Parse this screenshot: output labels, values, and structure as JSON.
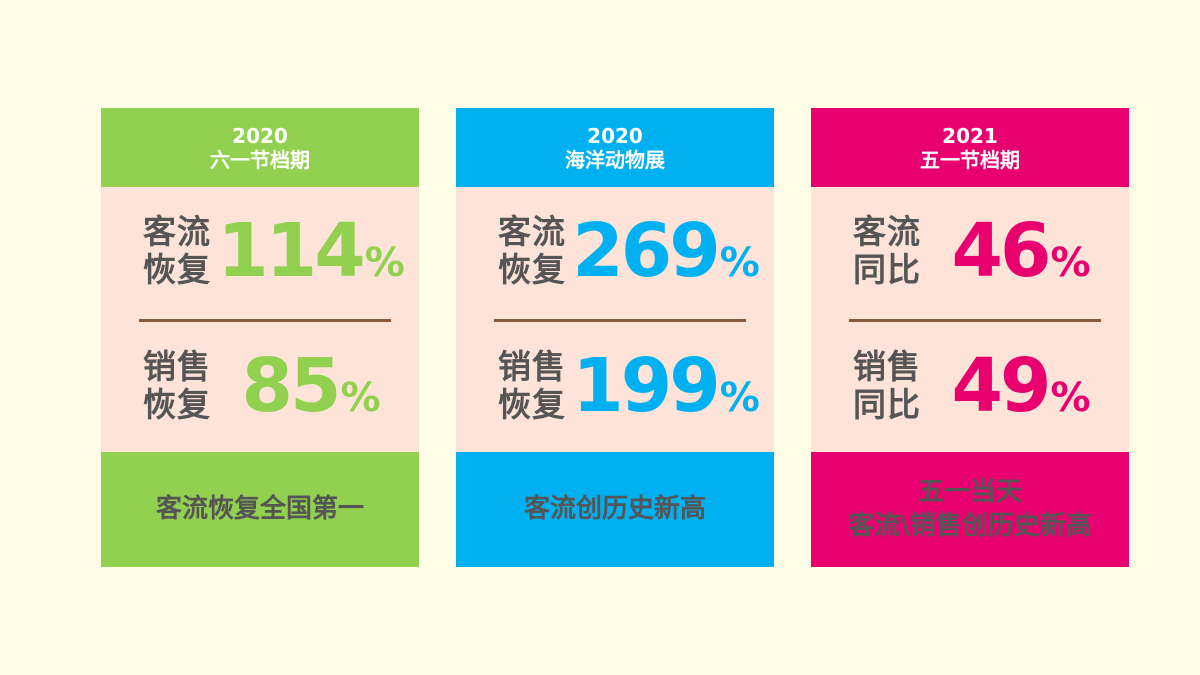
{
  "colors": {
    "background": "#fffde6",
    "card_body": "#fde3d8",
    "green": "#92d050",
    "blue": "#00b0f0",
    "magenta": "#e8006f",
    "label_gray": "#555555",
    "divider_brown": "#8b5a3c"
  },
  "cards": [
    {
      "accent": "#92d050",
      "year": "2020",
      "subtitle": "六一节档期",
      "metric1": {
        "label_line1": "客流",
        "label_line2": "恢复",
        "value": "114",
        "unit": "%"
      },
      "metric2": {
        "label_line1": "销售",
        "label_line2": "恢复",
        "value": "85",
        "unit": "%"
      },
      "footer_line1": "客流恢复全国第一",
      "footer_line2": ""
    },
    {
      "accent": "#00b0f0",
      "year": "2020",
      "subtitle": "海洋动物展",
      "metric1": {
        "label_line1": "客流",
        "label_line2": "恢复",
        "value": "269",
        "unit": "%"
      },
      "metric2": {
        "label_line1": "销售",
        "label_line2": "恢复",
        "value": "199",
        "unit": "%"
      },
      "footer_line1": "客流创历史新高",
      "footer_line2": ""
    },
    {
      "accent": "#e8006f",
      "year": "2021",
      "subtitle": "五一节档期",
      "metric1": {
        "label_line1": "客流",
        "label_line2": "同比",
        "value": "46",
        "unit": "%"
      },
      "metric2": {
        "label_line1": "销售",
        "label_line2": "同比",
        "value": "49",
        "unit": "%"
      },
      "footer_line1": "五一当天",
      "footer_line2": "客流\\销售创历史新高"
    }
  ]
}
